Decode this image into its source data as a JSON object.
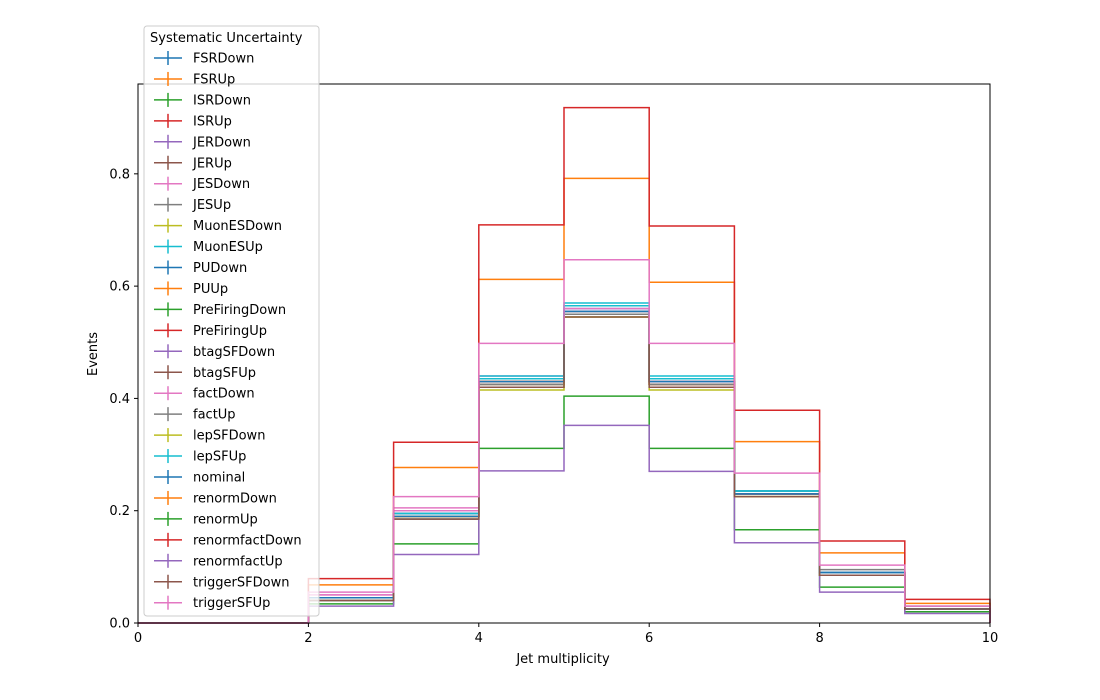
{
  "chart_data": {
    "type": "line",
    "drawstyle": "steps",
    "xlabel": "Jet multiplicity",
    "ylabel": "Events",
    "xlim": [
      0,
      10
    ],
    "ylim": [
      0,
      0.96
    ],
    "xticks": [
      "0",
      "2",
      "4",
      "6",
      "8",
      "10"
    ],
    "yticks": [
      "0.0",
      "0.2",
      "0.4",
      "0.6",
      "0.8"
    ],
    "grid": false,
    "legend": {
      "title": "Systematic Uncertainty",
      "placement": "top-left"
    },
    "bin_edges": [
      0,
      1,
      2,
      3,
      4,
      5,
      6,
      7,
      8,
      9,
      10
    ],
    "series": [
      {
        "name": "FSRDown",
        "color": "#1f77b4",
        "values": [
          0,
          0,
          0.045,
          0.195,
          0.435,
          0.555,
          0.43,
          0.235,
          0.09,
          0.025
        ]
      },
      {
        "name": "FSRUp",
        "color": "#ff7f0e",
        "values": [
          0,
          0,
          0.045,
          0.19,
          0.43,
          0.55,
          0.425,
          0.23,
          0.09,
          0.025
        ]
      },
      {
        "name": "ISRDown",
        "color": "#2ca02c",
        "values": [
          0,
          0,
          0.04,
          0.185,
          0.425,
          0.55,
          0.425,
          0.23,
          0.085,
          0.025
        ]
      },
      {
        "name": "ISRUp",
        "color": "#d62728",
        "values": [
          0,
          0,
          0.045,
          0.19,
          0.43,
          0.555,
          0.43,
          0.23,
          0.09,
          0.025
        ]
      },
      {
        "name": "JERDown",
        "color": "#9467bd",
        "values": [
          0,
          0,
          0.045,
          0.195,
          0.43,
          0.555,
          0.43,
          0.235,
          0.09,
          0.025
        ]
      },
      {
        "name": "JERUp",
        "color": "#8c564b",
        "values": [
          0,
          0,
          0.045,
          0.19,
          0.43,
          0.55,
          0.425,
          0.23,
          0.09,
          0.025
        ]
      },
      {
        "name": "JESDown",
        "color": "#e377c2",
        "values": [
          0,
          0,
          0.05,
          0.205,
          0.44,
          0.56,
          0.43,
          0.23,
          0.085,
          0.025
        ]
      },
      {
        "name": "JESUp",
        "color": "#7f7f7f",
        "values": [
          0,
          0,
          0.04,
          0.185,
          0.425,
          0.55,
          0.43,
          0.235,
          0.095,
          0.03
        ]
      },
      {
        "name": "MuonESDown",
        "color": "#bcbd22",
        "values": [
          0,
          0,
          0.045,
          0.19,
          0.42,
          0.545,
          0.42,
          0.225,
          0.085,
          0.025
        ]
      },
      {
        "name": "MuonESUp",
        "color": "#17becf",
        "values": [
          0,
          0,
          0.045,
          0.195,
          0.44,
          0.57,
          0.44,
          0.235,
          0.09,
          0.025
        ]
      },
      {
        "name": "PUDown",
        "color": "#1f77b4",
        "values": [
          0,
          0,
          0.045,
          0.195,
          0.435,
          0.56,
          0.43,
          0.23,
          0.09,
          0.025
        ]
      },
      {
        "name": "PUUp",
        "color": "#ff7f0e",
        "values": [
          0,
          0,
          0.045,
          0.19,
          0.425,
          0.55,
          0.425,
          0.23,
          0.09,
          0.025
        ]
      },
      {
        "name": "PreFiringDown",
        "color": "#2ca02c",
        "values": [
          0,
          0,
          0.045,
          0.19,
          0.43,
          0.555,
          0.43,
          0.23,
          0.09,
          0.025
        ]
      },
      {
        "name": "PreFiringUp",
        "color": "#d62728",
        "values": [
          0,
          0,
          0.045,
          0.19,
          0.43,
          0.55,
          0.425,
          0.23,
          0.09,
          0.025
        ]
      },
      {
        "name": "btagSFDown",
        "color": "#9467bd",
        "values": [
          0,
          0,
          0.045,
          0.195,
          0.435,
          0.555,
          0.43,
          0.23,
          0.09,
          0.025
        ]
      },
      {
        "name": "btagSFUp",
        "color": "#8c564b",
        "values": [
          0,
          0,
          0.045,
          0.19,
          0.425,
          0.55,
          0.425,
          0.23,
          0.085,
          0.025
        ]
      },
      {
        "name": "factDown",
        "color": "#e377c2",
        "values": [
          0,
          0,
          0.05,
          0.2,
          0.435,
          0.56,
          0.43,
          0.23,
          0.09,
          0.025
        ]
      },
      {
        "name": "factUp",
        "color": "#7f7f7f",
        "values": [
          0,
          0,
          0.04,
          0.185,
          0.425,
          0.55,
          0.425,
          0.23,
          0.09,
          0.025
        ]
      },
      {
        "name": "lepSFDown",
        "color": "#bcbd22",
        "values": [
          0,
          0,
          0.045,
          0.19,
          0.415,
          0.545,
          0.415,
          0.225,
          0.085,
          0.025
        ]
      },
      {
        "name": "lepSFUp",
        "color": "#17becf",
        "values": [
          0,
          0,
          0.045,
          0.195,
          0.435,
          0.565,
          0.435,
          0.235,
          0.09,
          0.025
        ]
      },
      {
        "name": "nominal",
        "color": "#1f77b4",
        "values": [
          0,
          0,
          0.045,
          0.19,
          0.43,
          0.555,
          0.43,
          0.23,
          0.09,
          0.025
        ]
      },
      {
        "name": "renormDown",
        "color": "#ff7f0e",
        "values": [
          0,
          0,
          0.068,
          0.277,
          0.612,
          0.792,
          0.607,
          0.323,
          0.125,
          0.035
        ]
      },
      {
        "name": "renormUp",
        "color": "#2ca02c",
        "values": [
          0,
          0,
          0.034,
          0.141,
          0.311,
          0.404,
          0.311,
          0.166,
          0.064,
          0.02
        ]
      },
      {
        "name": "renormfactDown",
        "color": "#d62728",
        "values": [
          0,
          0,
          0.079,
          0.322,
          0.709,
          0.918,
          0.707,
          0.379,
          0.146,
          0.042
        ]
      },
      {
        "name": "renormfactUp",
        "color": "#9467bd",
        "values": [
          0,
          0,
          0.03,
          0.122,
          0.271,
          0.352,
          0.27,
          0.143,
          0.055,
          0.017
        ]
      },
      {
        "name": "triggerSFDown",
        "color": "#8c564b",
        "values": [
          0,
          0,
          0.04,
          0.185,
          0.42,
          0.545,
          0.42,
          0.225,
          0.085,
          0.025
        ]
      },
      {
        "name": "triggerSFUp",
        "color": "#e377c2",
        "values": [
          0,
          0,
          0.055,
          0.225,
          0.498,
          0.647,
          0.498,
          0.267,
          0.103,
          0.03
        ]
      }
    ]
  }
}
